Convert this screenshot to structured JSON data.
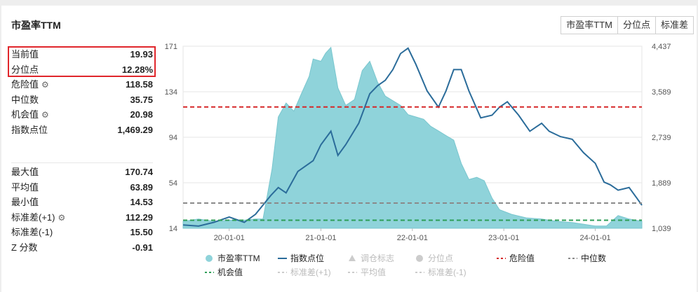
{
  "title": "市盈率TTM",
  "buttons": [
    "市盈率TTM",
    "分位点",
    "标准差"
  ],
  "stats_top": [
    {
      "label": "当前值",
      "value": "19.93",
      "gear": false
    },
    {
      "label": "分位点",
      "value": "12.28%",
      "gear": false
    },
    {
      "label": "危险值",
      "value": "118.58",
      "gear": true
    },
    {
      "label": "中位数",
      "value": "35.75",
      "gear": false
    },
    {
      "label": "机会值",
      "value": "20.98",
      "gear": true
    },
    {
      "label": "指数点位",
      "value": "1,469.29",
      "gear": false
    }
  ],
  "stats_bottom": [
    {
      "label": "最大值",
      "value": "170.74",
      "gear": false
    },
    {
      "label": "平均值",
      "value": "63.89",
      "gear": false
    },
    {
      "label": "最小值",
      "value": "14.53",
      "gear": false
    },
    {
      "label": "标准差(+1)",
      "value": "112.29",
      "gear": true
    },
    {
      "label": "标准差(-1)",
      "value": "15.50",
      "gear": false
    },
    {
      "label": "Z 分数",
      "value": "-0.91",
      "gear": false
    }
  ],
  "colors": {
    "pe_fill": "#8fd3da",
    "pe_stroke": "#79c6ce",
    "index_line": "#2b6c9a",
    "danger": "#d62728",
    "median": "#8a8a8a",
    "opportunity": "#2e9e57",
    "highlight": "#e0262b"
  },
  "chart_data": {
    "type": "area",
    "y_left_ticks": [
      "171",
      "134",
      "94",
      "54",
      "14"
    ],
    "y_left_range": [
      14,
      171
    ],
    "y_right_ticks": [
      "4,437",
      "3,589",
      "2,739",
      "1,889",
      "1,039"
    ],
    "y_right_range": [
      1039,
      4437
    ],
    "x_ticks": [
      "20-01-01",
      "21-01-01",
      "22-01-01",
      "23-01-01",
      "24-01-01"
    ],
    "x_range": [
      "2019-07-01",
      "2024-07-05"
    ],
    "reference_lines": [
      {
        "name": "危险值",
        "value": 118.58
      },
      {
        "name": "中位数",
        "value": 35.75
      },
      {
        "name": "机会值",
        "value": 20.98
      }
    ],
    "series": [
      {
        "name": "市盈率TTM",
        "points": [
          [
            "2019-07-01",
            20
          ],
          [
            "2019-09-01",
            22
          ],
          [
            "2019-11-01",
            20
          ],
          [
            "2020-01-01",
            21
          ],
          [
            "2020-03-01",
            21
          ],
          [
            "2020-04-15",
            22
          ],
          [
            "2020-05-15",
            22
          ],
          [
            "2020-06-20",
            65
          ],
          [
            "2020-07-15",
            110
          ],
          [
            "2020-08-15",
            122
          ],
          [
            "2020-09-15",
            115
          ],
          [
            "2020-10-15",
            130
          ],
          [
            "2020-11-15",
            145
          ],
          [
            "2020-12-01",
            160
          ],
          [
            "2021-01-01",
            158
          ],
          [
            "2021-01-20",
            165
          ],
          [
            "2021-02-10",
            170
          ],
          [
            "2021-03-10",
            135
          ],
          [
            "2021-04-10",
            120
          ],
          [
            "2021-05-15",
            125
          ],
          [
            "2021-06-15",
            150
          ],
          [
            "2021-07-15",
            158
          ],
          [
            "2021-08-15",
            140
          ],
          [
            "2021-09-15",
            128
          ],
          [
            "2021-10-15",
            124
          ],
          [
            "2021-11-15",
            120
          ],
          [
            "2021-12-15",
            112
          ],
          [
            "2022-01-15",
            110
          ],
          [
            "2022-02-15",
            108
          ],
          [
            "2022-03-15",
            102
          ],
          [
            "2022-04-15",
            98
          ],
          [
            "2022-05-15",
            94
          ],
          [
            "2022-06-15",
            90
          ],
          [
            "2022-07-15",
            70
          ],
          [
            "2022-08-15",
            56
          ],
          [
            "2022-09-15",
            58
          ],
          [
            "2022-10-15",
            55
          ],
          [
            "2022-11-15",
            40
          ],
          [
            "2022-12-15",
            30
          ],
          [
            "2023-02-01",
            26
          ],
          [
            "2023-04-01",
            23
          ],
          [
            "2023-06-01",
            22
          ],
          [
            "2023-08-01",
            20
          ],
          [
            "2023-10-01",
            19
          ],
          [
            "2024-01-01",
            16
          ],
          [
            "2024-02-15",
            16
          ],
          [
            "2024-04-01",
            25
          ],
          [
            "2024-05-15",
            22
          ],
          [
            "2024-07-05",
            20
          ]
        ]
      },
      {
        "name": "指数点位",
        "points": [
          [
            "2019-07-01",
            1100
          ],
          [
            "2019-09-01",
            1080
          ],
          [
            "2019-11-01",
            1150
          ],
          [
            "2020-01-01",
            1250
          ],
          [
            "2020-03-01",
            1150
          ],
          [
            "2020-04-15",
            1300
          ],
          [
            "2020-06-15",
            1650
          ],
          [
            "2020-07-15",
            1800
          ],
          [
            "2020-08-15",
            1700
          ],
          [
            "2020-10-01",
            2100
          ],
          [
            "2020-12-01",
            2300
          ],
          [
            "2021-01-01",
            2600
          ],
          [
            "2021-02-10",
            2850
          ],
          [
            "2021-03-10",
            2400
          ],
          [
            "2021-04-10",
            2600
          ],
          [
            "2021-06-01",
            3000
          ],
          [
            "2021-07-15",
            3550
          ],
          [
            "2021-08-15",
            3700
          ],
          [
            "2021-09-15",
            3800
          ],
          [
            "2021-10-15",
            4000
          ],
          [
            "2021-11-15",
            4300
          ],
          [
            "2021-12-15",
            4400
          ],
          [
            "2022-01-15",
            4100
          ],
          [
            "2022-03-01",
            3600
          ],
          [
            "2022-04-15",
            3300
          ],
          [
            "2022-05-15",
            3600
          ],
          [
            "2022-06-15",
            4000
          ],
          [
            "2022-07-15",
            4000
          ],
          [
            "2022-08-15",
            3600
          ],
          [
            "2022-10-01",
            3100
          ],
          [
            "2022-11-15",
            3150
          ],
          [
            "2022-12-15",
            3300
          ],
          [
            "2023-01-15",
            3400
          ],
          [
            "2023-03-01",
            3150
          ],
          [
            "2023-04-15",
            2850
          ],
          [
            "2023-06-01",
            3000
          ],
          [
            "2023-07-01",
            2850
          ],
          [
            "2023-08-15",
            2750
          ],
          [
            "2023-10-01",
            2700
          ],
          [
            "2023-11-15",
            2450
          ],
          [
            "2024-01-01",
            2250
          ],
          [
            "2024-02-05",
            1900
          ],
          [
            "2024-03-01",
            1850
          ],
          [
            "2024-04-01",
            1750
          ],
          [
            "2024-05-15",
            1800
          ],
          [
            "2024-06-15",
            1600
          ],
          [
            "2024-07-05",
            1469.29
          ]
        ]
      }
    ],
    "legend": [
      {
        "label": "市盈率TTM",
        "symbol": "circle",
        "color": "#8fd3da",
        "active": true
      },
      {
        "label": "指数点位",
        "symbol": "line",
        "color": "#2b6c9a",
        "active": true
      },
      {
        "label": "调仓标志",
        "symbol": "triangle",
        "color": "#cccccc",
        "active": false
      },
      {
        "label": "分位点",
        "symbol": "circle",
        "color": "#cccccc",
        "active": false
      },
      {
        "label": "危险值",
        "symbol": "dash",
        "color": "#d62728",
        "active": true
      },
      {
        "label": "中位数",
        "symbol": "dash",
        "color": "#8a8a8a",
        "active": true
      },
      {
        "label": "机会值",
        "symbol": "dash",
        "color": "#2e9e57",
        "active": true
      },
      {
        "label": "标准差(+1)",
        "symbol": "dash",
        "color": "#cccccc",
        "active": false
      },
      {
        "label": "平均值",
        "symbol": "dash",
        "color": "#cccccc",
        "active": false
      },
      {
        "label": "标准差(-1)",
        "symbol": "dash",
        "color": "#cccccc",
        "active": false
      }
    ]
  }
}
